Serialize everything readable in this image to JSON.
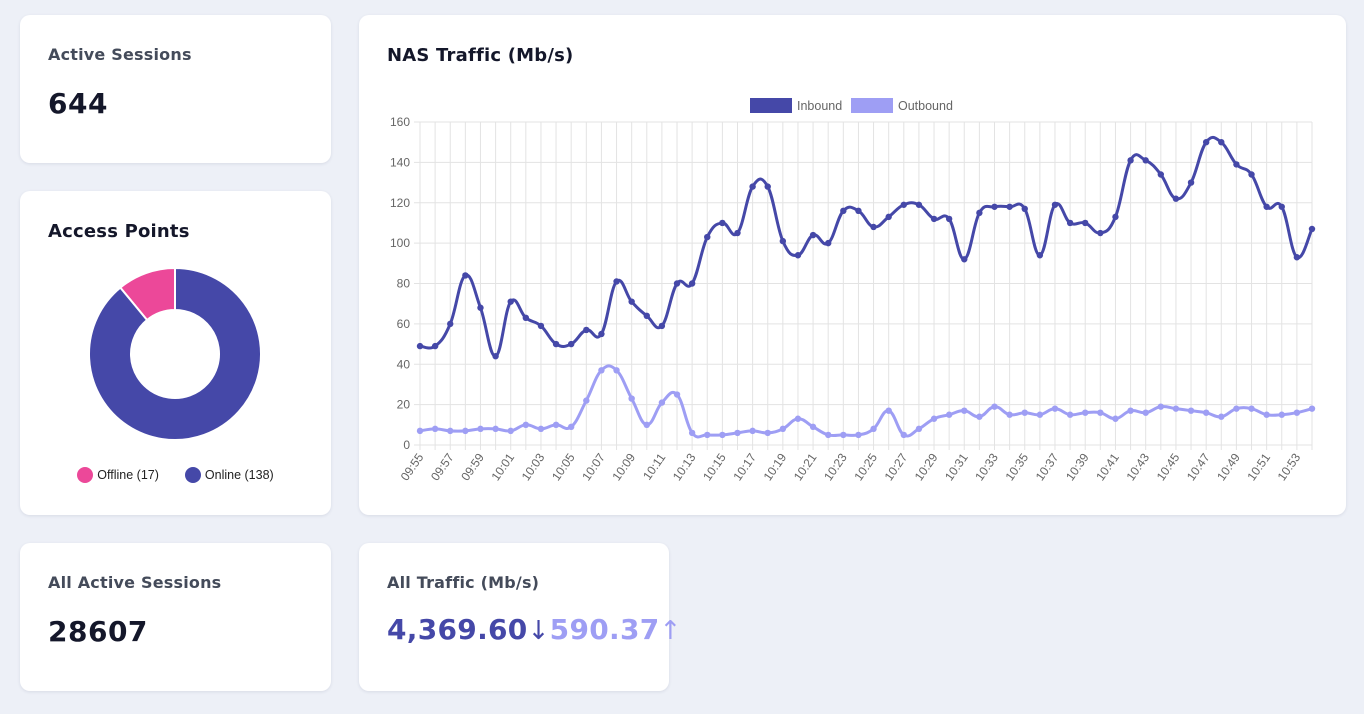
{
  "active_sessions": {
    "title": "Active Sessions",
    "value": "644"
  },
  "access_points": {
    "title": "Access Points",
    "legend": [
      {
        "label": "Offline (17)",
        "value": 17,
        "color": "#ec4899"
      },
      {
        "label": "Online (138)",
        "value": 138,
        "color": "#4548a8"
      }
    ]
  },
  "nas_traffic": {
    "title": "NAS Traffic (Mb/s)"
  },
  "all_active_sessions": {
    "title": "All Active Sessions",
    "value": "28607"
  },
  "all_traffic": {
    "title": "All Traffic (Mb/s)",
    "inbound": "4,369.60",
    "inbound_arrow": "↓",
    "outbound": "590.37",
    "outbound_arrow": "↑"
  },
  "chart_data": [
    {
      "type": "pie",
      "title": "Access Points",
      "labels": [
        "Offline (17)",
        "Online (138)"
      ],
      "values": [
        17,
        138
      ],
      "colors": [
        "#ec4899",
        "#4548a8"
      ],
      "legend_position": "bottom"
    },
    {
      "type": "line",
      "title": "NAS Traffic (Mb/s)",
      "x": [
        "09:55",
        "09:56",
        "09:57",
        "09:58",
        "09:59",
        "10:00",
        "10:01",
        "10:02",
        "10:03",
        "10:04",
        "10:05",
        "10:06",
        "10:07",
        "10:08",
        "10:09",
        "10:10",
        "10:11",
        "10:12",
        "10:13",
        "10:14",
        "10:15",
        "10:16",
        "10:17",
        "10:18",
        "10:19",
        "10:20",
        "10:21",
        "10:22",
        "10:23",
        "10:24",
        "10:25",
        "10:26",
        "10:27",
        "10:28",
        "10:29",
        "10:30",
        "10:31",
        "10:32",
        "10:33",
        "10:34",
        "10:35",
        "10:36",
        "10:37",
        "10:38",
        "10:39",
        "10:40",
        "10:41",
        "10:42",
        "10:43",
        "10:44",
        "10:45",
        "10:46",
        "10:47",
        "10:48",
        "10:49",
        "10:50",
        "10:51",
        "10:52",
        "10:53",
        "10:54"
      ],
      "x_tick_labels": [
        "09:55",
        "09:57",
        "09:59",
        "10:01",
        "10:03",
        "10:05",
        "10:07",
        "10:09",
        "10:11",
        "10:13",
        "10:15",
        "10:17",
        "10:19",
        "10:21",
        "10:23",
        "10:25",
        "10:27",
        "10:29",
        "10:31",
        "10:33",
        "10:35",
        "10:37",
        "10:39",
        "10:41",
        "10:43",
        "10:45",
        "10:47",
        "10:49",
        "10:51",
        "10:53"
      ],
      "series": [
        {
          "name": "Inbound",
          "color": "#4548a8",
          "values": [
            49,
            49,
            60,
            84,
            68,
            44,
            71,
            63,
            59,
            50,
            50,
            57,
            55,
            81,
            71,
            64,
            59,
            80,
            80,
            103,
            110,
            105,
            128,
            128,
            101,
            94,
            104,
            100,
            116,
            116,
            108,
            113,
            119,
            119,
            112,
            112,
            92,
            115,
            118,
            118,
            117,
            94,
            119,
            110,
            110,
            105,
            113,
            141,
            141,
            134,
            122,
            130,
            150,
            150,
            139,
            134,
            118,
            118,
            93,
            107
          ]
        },
        {
          "name": "Outbound",
          "color": "#9e9ef4",
          "values": [
            7,
            8,
            7,
            7,
            8,
            8,
            7,
            10,
            8,
            10,
            9,
            22,
            37,
            37,
            23,
            10,
            21,
            25,
            6,
            5,
            5,
            6,
            7,
            6,
            8,
            13,
            9,
            5,
            5,
            5,
            8,
            17,
            5,
            8,
            13,
            15,
            17,
            14,
            19,
            15,
            16,
            15,
            18,
            15,
            16,
            16,
            13,
            17,
            16,
            19,
            18,
            17,
            16,
            14,
            18,
            18,
            15,
            15,
            16,
            18
          ]
        }
      ],
      "ylim": [
        0,
        160
      ],
      "y_ticks": [
        0,
        20,
        40,
        60,
        80,
        100,
        120,
        140,
        160
      ],
      "grid": true,
      "legend_position": "top"
    }
  ]
}
